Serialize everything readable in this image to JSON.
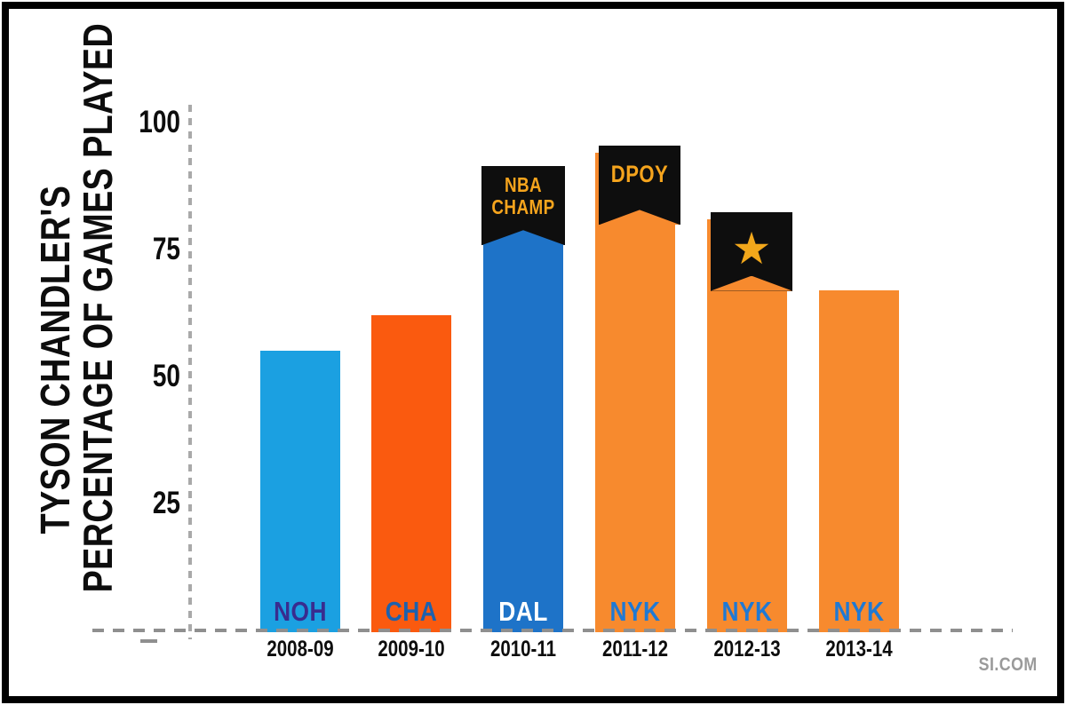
{
  "title": {
    "line1": "TYSON CHANDLER'S",
    "line2": "PERCENTAGE OF GAMES PLAYED"
  },
  "watermark": "SI.COM",
  "y_axis": {
    "ticks": [
      "100",
      "75",
      "50",
      "25"
    ]
  },
  "chart_data": {
    "type": "bar",
    "title": "Tyson Chandler's Percentage of Games Played",
    "ylabel": "Tyson Chandler's Percentage of Games Played",
    "xlabel": "",
    "ylim": [
      0,
      100
    ],
    "yticks": [
      25,
      50,
      75,
      100
    ],
    "grid": false,
    "categories": [
      "2008-09",
      "2009-10",
      "2010-11",
      "2011-12",
      "2012-13",
      "2013-14"
    ],
    "values": [
      55,
      62,
      90,
      94,
      81,
      67
    ],
    "bars": [
      {
        "season": "2008-09",
        "team": "NOH",
        "value": 55,
        "bar_color": "#1ba0e1",
        "team_label_color": "#392c8f",
        "annotation": null
      },
      {
        "season": "2009-10",
        "team": "CHA",
        "value": 62,
        "bar_color": "#fa5a0f",
        "team_label_color": "#1c61ae",
        "annotation": null
      },
      {
        "season": "2010-11",
        "team": "DAL",
        "value": 90,
        "bar_color": "#1e73c8",
        "team_label_color": "#ffffff",
        "annotation": {
          "type": "text",
          "lines": [
            "NBA",
            "CHAMP"
          ]
        }
      },
      {
        "season": "2011-12",
        "team": "NYK",
        "value": 94,
        "bar_color": "#f78a2e",
        "team_label_color": "#1f79d4",
        "annotation": {
          "type": "text",
          "lines": [
            "DPOY"
          ]
        }
      },
      {
        "season": "2012-13",
        "team": "NYK",
        "value": 81,
        "bar_color": "#f78a2e",
        "team_label_color": "#1f79d4",
        "annotation": {
          "type": "star",
          "lines": [
            "★"
          ]
        }
      },
      {
        "season": "2013-14",
        "team": "NYK",
        "value": 67,
        "bar_color": "#f78a2e",
        "team_label_color": "#1f79d4",
        "annotation": null
      }
    ]
  },
  "colors": {
    "banner_bg": "#0e0e0e",
    "banner_text": "#f5a41d",
    "axis_dash": "#8f8f8f",
    "tick_label": "#0d0d0d",
    "watermark": "#9a9a9a"
  }
}
